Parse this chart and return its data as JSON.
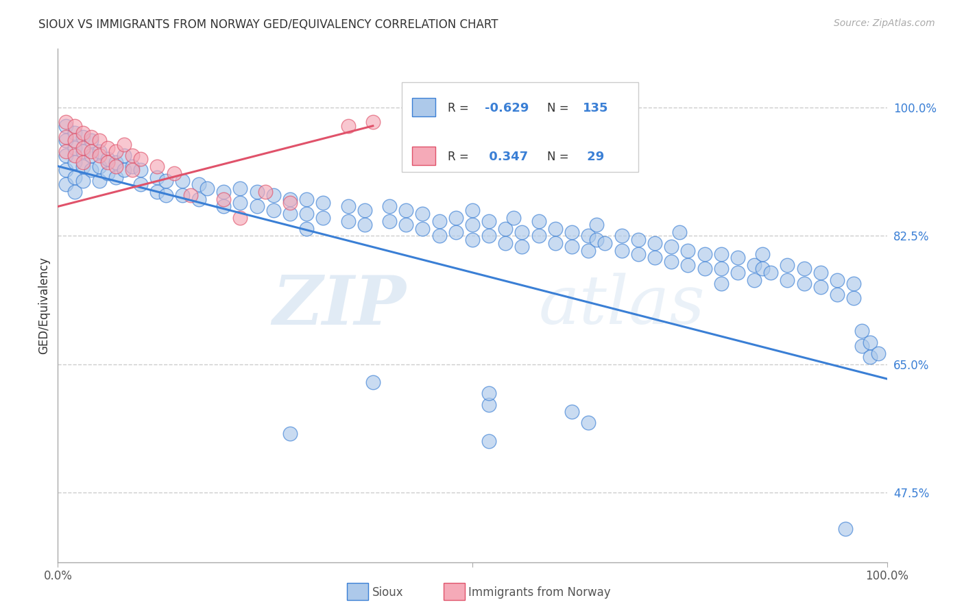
{
  "title": "SIOUX VS IMMIGRANTS FROM NORWAY GED/EQUIVALENCY CORRELATION CHART",
  "source": "Source: ZipAtlas.com",
  "ylabel": "GED/Equivalency",
  "yticks": [
    "100.0%",
    "82.5%",
    "65.0%",
    "47.5%"
  ],
  "ytick_vals": [
    1.0,
    0.825,
    0.65,
    0.475
  ],
  "xlim": [
    0.0,
    1.0
  ],
  "ylim": [
    0.38,
    1.08
  ],
  "blue_color": "#adc9ea",
  "pink_color": "#f5aab8",
  "blue_line_color": "#3a7fd5",
  "pink_line_color": "#e0526a",
  "watermark_zip": "ZIP",
  "watermark_atlas": "atlas",
  "sioux_line_x": [
    0.0,
    1.0
  ],
  "sioux_line_y": [
    0.92,
    0.63
  ],
  "norway_line_x": [
    0.0,
    0.38
  ],
  "norway_line_y": [
    0.865,
    0.975
  ],
  "sioux_points": [
    [
      0.01,
      0.975
    ],
    [
      0.01,
      0.955
    ],
    [
      0.01,
      0.935
    ],
    [
      0.01,
      0.915
    ],
    [
      0.01,
      0.895
    ],
    [
      0.02,
      0.965
    ],
    [
      0.02,
      0.945
    ],
    [
      0.02,
      0.925
    ],
    [
      0.02,
      0.905
    ],
    [
      0.02,
      0.885
    ],
    [
      0.03,
      0.96
    ],
    [
      0.03,
      0.94
    ],
    [
      0.03,
      0.92
    ],
    [
      0.03,
      0.9
    ],
    [
      0.04,
      0.955
    ],
    [
      0.04,
      0.935
    ],
    [
      0.04,
      0.915
    ],
    [
      0.05,
      0.94
    ],
    [
      0.05,
      0.92
    ],
    [
      0.05,
      0.9
    ],
    [
      0.06,
      0.93
    ],
    [
      0.06,
      0.91
    ],
    [
      0.07,
      0.925
    ],
    [
      0.07,
      0.905
    ],
    [
      0.08,
      0.935
    ],
    [
      0.08,
      0.915
    ],
    [
      0.09,
      0.92
    ],
    [
      0.1,
      0.915
    ],
    [
      0.1,
      0.895
    ],
    [
      0.12,
      0.905
    ],
    [
      0.12,
      0.885
    ],
    [
      0.13,
      0.9
    ],
    [
      0.13,
      0.88
    ],
    [
      0.15,
      0.9
    ],
    [
      0.15,
      0.88
    ],
    [
      0.17,
      0.895
    ],
    [
      0.17,
      0.875
    ],
    [
      0.18,
      0.89
    ],
    [
      0.2,
      0.885
    ],
    [
      0.2,
      0.865
    ],
    [
      0.22,
      0.89
    ],
    [
      0.22,
      0.87
    ],
    [
      0.24,
      0.885
    ],
    [
      0.24,
      0.865
    ],
    [
      0.26,
      0.88
    ],
    [
      0.26,
      0.86
    ],
    [
      0.28,
      0.875
    ],
    [
      0.28,
      0.855
    ],
    [
      0.3,
      0.875
    ],
    [
      0.3,
      0.855
    ],
    [
      0.3,
      0.835
    ],
    [
      0.32,
      0.87
    ],
    [
      0.32,
      0.85
    ],
    [
      0.35,
      0.865
    ],
    [
      0.35,
      0.845
    ],
    [
      0.37,
      0.86
    ],
    [
      0.37,
      0.84
    ],
    [
      0.4,
      0.865
    ],
    [
      0.4,
      0.845
    ],
    [
      0.42,
      0.86
    ],
    [
      0.42,
      0.84
    ],
    [
      0.44,
      0.855
    ],
    [
      0.44,
      0.835
    ],
    [
      0.46,
      0.845
    ],
    [
      0.46,
      0.825
    ],
    [
      0.48,
      0.85
    ],
    [
      0.48,
      0.83
    ],
    [
      0.5,
      0.84
    ],
    [
      0.5,
      0.82
    ],
    [
      0.5,
      0.86
    ],
    [
      0.52,
      0.845
    ],
    [
      0.52,
      0.825
    ],
    [
      0.54,
      0.835
    ],
    [
      0.54,
      0.815
    ],
    [
      0.55,
      0.85
    ],
    [
      0.56,
      0.83
    ],
    [
      0.56,
      0.81
    ],
    [
      0.58,
      0.825
    ],
    [
      0.58,
      0.845
    ],
    [
      0.6,
      0.835
    ],
    [
      0.6,
      0.815
    ],
    [
      0.62,
      0.83
    ],
    [
      0.62,
      0.81
    ],
    [
      0.64,
      0.825
    ],
    [
      0.64,
      0.805
    ],
    [
      0.65,
      0.84
    ],
    [
      0.65,
      0.82
    ],
    [
      0.66,
      0.815
    ],
    [
      0.68,
      0.825
    ],
    [
      0.68,
      0.805
    ],
    [
      0.7,
      0.82
    ],
    [
      0.7,
      0.8
    ],
    [
      0.72,
      0.815
    ],
    [
      0.72,
      0.795
    ],
    [
      0.74,
      0.81
    ],
    [
      0.74,
      0.79
    ],
    [
      0.75,
      0.83
    ],
    [
      0.76,
      0.805
    ],
    [
      0.76,
      0.785
    ],
    [
      0.78,
      0.8
    ],
    [
      0.78,
      0.78
    ],
    [
      0.8,
      0.8
    ],
    [
      0.8,
      0.78
    ],
    [
      0.8,
      0.76
    ],
    [
      0.82,
      0.795
    ],
    [
      0.82,
      0.775
    ],
    [
      0.84,
      0.785
    ],
    [
      0.84,
      0.765
    ],
    [
      0.85,
      0.8
    ],
    [
      0.85,
      0.78
    ],
    [
      0.86,
      0.775
    ],
    [
      0.88,
      0.785
    ],
    [
      0.88,
      0.765
    ],
    [
      0.9,
      0.78
    ],
    [
      0.9,
      0.76
    ],
    [
      0.92,
      0.775
    ],
    [
      0.92,
      0.755
    ],
    [
      0.94,
      0.765
    ],
    [
      0.94,
      0.745
    ],
    [
      0.96,
      0.76
    ],
    [
      0.96,
      0.74
    ],
    [
      0.97,
      0.695
    ],
    [
      0.97,
      0.675
    ],
    [
      0.98,
      0.68
    ],
    [
      0.98,
      0.66
    ],
    [
      0.99,
      0.665
    ],
    [
      0.38,
      0.625
    ],
    [
      0.52,
      0.595
    ],
    [
      0.52,
      0.61
    ],
    [
      0.62,
      0.585
    ],
    [
      0.64,
      0.57
    ],
    [
      0.28,
      0.555
    ],
    [
      0.52,
      0.545
    ],
    [
      0.95,
      0.425
    ]
  ],
  "norway_points": [
    [
      0.01,
      0.98
    ],
    [
      0.01,
      0.96
    ],
    [
      0.01,
      0.94
    ],
    [
      0.02,
      0.975
    ],
    [
      0.02,
      0.955
    ],
    [
      0.02,
      0.935
    ],
    [
      0.03,
      0.965
    ],
    [
      0.03,
      0.945
    ],
    [
      0.03,
      0.925
    ],
    [
      0.04,
      0.96
    ],
    [
      0.04,
      0.94
    ],
    [
      0.05,
      0.955
    ],
    [
      0.05,
      0.935
    ],
    [
      0.06,
      0.945
    ],
    [
      0.06,
      0.925
    ],
    [
      0.07,
      0.94
    ],
    [
      0.07,
      0.92
    ],
    [
      0.08,
      0.95
    ],
    [
      0.09,
      0.935
    ],
    [
      0.09,
      0.915
    ],
    [
      0.1,
      0.93
    ],
    [
      0.12,
      0.92
    ],
    [
      0.14,
      0.91
    ],
    [
      0.16,
      0.88
    ],
    [
      0.2,
      0.875
    ],
    [
      0.22,
      0.85
    ],
    [
      0.25,
      0.885
    ],
    [
      0.28,
      0.87
    ],
    [
      0.35,
      0.975
    ],
    [
      0.38,
      0.98
    ]
  ]
}
